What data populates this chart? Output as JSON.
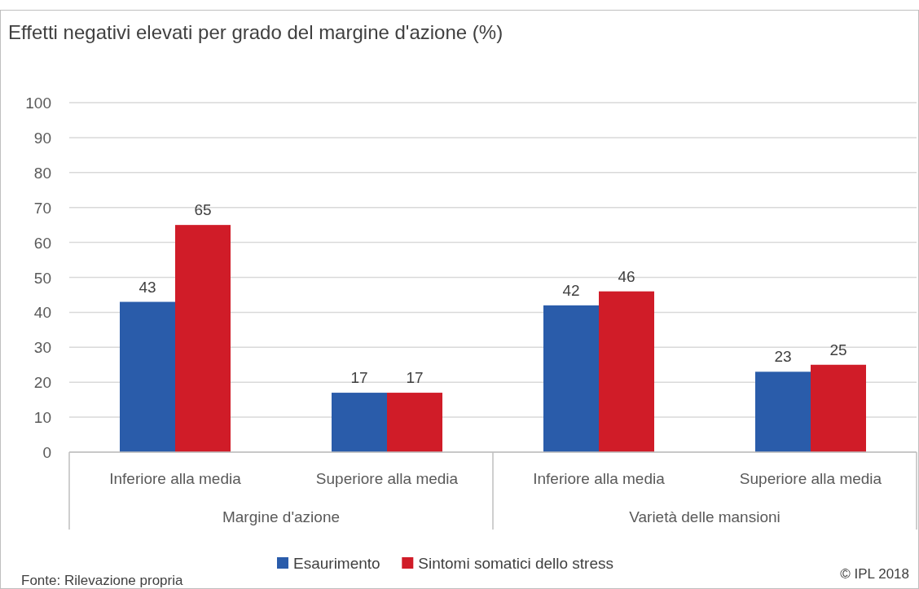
{
  "chart_data": {
    "type": "bar",
    "title": "Effetti negativi elevati per grado del margine d'azione (%)",
    "categories": [
      "Inferiore alla media",
      "Superiore alla media",
      "Inferiore alla media",
      "Superiore alla media"
    ],
    "series": [
      {
        "name": "Esaurimento",
        "color": "#2a5caa",
        "values": [
          43,
          17,
          42,
          23
        ]
      },
      {
        "name": "Sintomi somatici dello stress",
        "color": "#d01c28",
        "values": [
          65,
          17,
          46,
          25
        ]
      }
    ],
    "ylim": [
      0,
      100
    ],
    "yticks": [
      0,
      10,
      20,
      30,
      40,
      50,
      60,
      70,
      80,
      90,
      100
    ],
    "grid": "y",
    "data_labels": true,
    "legend": "bottom",
    "annotations": [
      "Margine d'azione",
      "Varietà delle mansioni",
      "Fonte: Rilevazione propria",
      "© IPL 2018"
    ]
  }
}
